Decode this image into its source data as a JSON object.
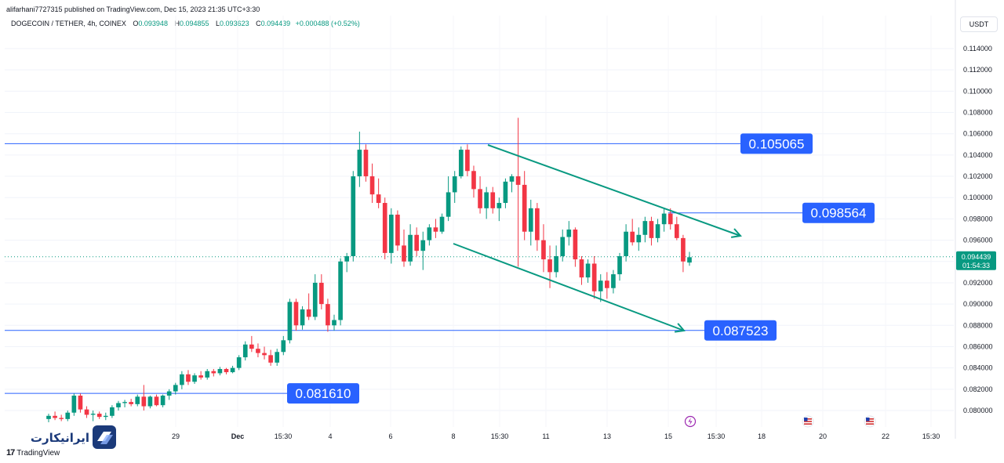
{
  "header": {
    "published": "alifarhani7727315 published on TradingView.com, Dec 15, 2023 21:35 UTC+3:30",
    "symbol": "DOGECOIN / TETHER, 4h, COINEX",
    "ohlc": {
      "o_label": "O",
      "o": "0.093948",
      "h_label": "H",
      "h": "0.094855",
      "l_label": "L",
      "l": "0.093623",
      "c_label": "C",
      "c": "0.094439",
      "change": "+0.000488 (+0.52%)"
    },
    "currency": "USDT"
  },
  "footer": {
    "brand": "TradingView",
    "watermark": "ایرانیکارت"
  },
  "colors": {
    "up": "#089981",
    "down": "#f23645",
    "level_line": "#2962ff",
    "label_bg": "#2962ff",
    "channel": "#089981",
    "price_tag": "#089981"
  },
  "chart_data": {
    "type": "candlestick",
    "symbol": "DOGECOIN / TETHER",
    "interval": "4h",
    "exchange": "COINEX",
    "y_ticks": [
      "0.114000",
      "0.112000",
      "0.110000",
      "0.108000",
      "0.106000",
      "0.104000",
      "0.102000",
      "0.100000",
      "0.098000",
      "0.096000",
      "0.094000",
      "0.092000",
      "0.090000",
      "0.088000",
      "0.086000",
      "0.084000",
      "0.082000",
      "0.080000"
    ],
    "ylim": [
      0.0788,
      0.1158
    ],
    "x_ticks": [
      "29",
      "Dec",
      "15:30",
      "4",
      "6",
      "8",
      "15:30",
      "11",
      "13",
      "15",
      "15:30",
      "18",
      "20",
      "22",
      "15:30"
    ],
    "current_price": "0.094439",
    "countdown": "01:54:33",
    "levels": [
      {
        "label": "0.105065",
        "value": 0.105065
      },
      {
        "label": "0.098564",
        "value": 0.098564
      },
      {
        "label": "0.087523",
        "value": 0.087523
      },
      {
        "label": "0.081610",
        "value": 0.08161
      }
    ],
    "candles": [
      [
        0.0792,
        0.0797,
        0.0789,
        0.0795
      ],
      [
        0.0795,
        0.0799,
        0.0791,
        0.0793
      ],
      [
        0.0793,
        0.0796,
        0.079,
        0.0792
      ],
      [
        0.0792,
        0.08,
        0.079,
        0.0798
      ],
      [
        0.0798,
        0.0816,
        0.0795,
        0.0814
      ],
      [
        0.0814,
        0.0816,
        0.0798,
        0.0801
      ],
      [
        0.0801,
        0.0804,
        0.0793,
        0.0796
      ],
      [
        0.0796,
        0.08,
        0.079,
        0.0797
      ],
      [
        0.0797,
        0.0799,
        0.0792,
        0.0794
      ],
      [
        0.0794,
        0.0798,
        0.0791,
        0.0795
      ],
      [
        0.0795,
        0.0805,
        0.0793,
        0.0803
      ],
      [
        0.0803,
        0.0809,
        0.08,
        0.0807
      ],
      [
        0.0807,
        0.081,
        0.0803,
        0.0808
      ],
      [
        0.0808,
        0.0811,
        0.0804,
        0.0806
      ],
      [
        0.0806,
        0.0815,
        0.0804,
        0.0813
      ],
      [
        0.0813,
        0.0824,
        0.08,
        0.0804
      ],
      [
        0.0804,
        0.0814,
        0.0802,
        0.0813
      ],
      [
        0.0813,
        0.0815,
        0.0804,
        0.0805
      ],
      [
        0.0805,
        0.0815,
        0.0803,
        0.0814
      ],
      [
        0.0814,
        0.082,
        0.081,
        0.0818
      ],
      [
        0.0818,
        0.0826,
        0.0815,
        0.0824
      ],
      [
        0.0824,
        0.0837,
        0.082,
        0.0834
      ],
      [
        0.0834,
        0.0838,
        0.0824,
        0.0827
      ],
      [
        0.0827,
        0.0835,
        0.0825,
        0.0833
      ],
      [
        0.0833,
        0.0837,
        0.0829,
        0.0831
      ],
      [
        0.0831,
        0.0839,
        0.0829,
        0.0837
      ],
      [
        0.0837,
        0.0839,
        0.0832,
        0.0835
      ],
      [
        0.0835,
        0.0841,
        0.0833,
        0.0839
      ],
      [
        0.0839,
        0.084,
        0.0834,
        0.0836
      ],
      [
        0.0836,
        0.0842,
        0.0835,
        0.084
      ],
      [
        0.084,
        0.0852,
        0.0838,
        0.085
      ],
      [
        0.085,
        0.0865,
        0.0847,
        0.0862
      ],
      [
        0.0862,
        0.087,
        0.0855,
        0.0858
      ],
      [
        0.0858,
        0.0863,
        0.085,
        0.0854
      ],
      [
        0.0854,
        0.086,
        0.0848,
        0.0852
      ],
      [
        0.0852,
        0.0857,
        0.0842,
        0.0845
      ],
      [
        0.0845,
        0.0858,
        0.0842,
        0.0855
      ],
      [
        0.0855,
        0.087,
        0.0852,
        0.0866
      ],
      [
        0.0866,
        0.0905,
        0.0863,
        0.0902
      ],
      [
        0.0902,
        0.0905,
        0.0875,
        0.088
      ],
      [
        0.088,
        0.0898,
        0.0876,
        0.0895
      ],
      [
        0.0895,
        0.091,
        0.0885,
        0.0888
      ],
      [
        0.0888,
        0.0928,
        0.0885,
        0.092
      ],
      [
        0.092,
        0.0928,
        0.0895,
        0.09
      ],
      [
        0.09,
        0.0905,
        0.0874,
        0.088
      ],
      [
        0.088,
        0.089,
        0.0875,
        0.0885
      ],
      [
        0.0885,
        0.0943,
        0.088,
        0.094
      ],
      [
        0.094,
        0.0948,
        0.093,
        0.0945
      ],
      [
        0.0945,
        0.1025,
        0.094,
        0.102
      ],
      [
        0.102,
        0.1062,
        0.101,
        0.1045
      ],
      [
        0.1045,
        0.105,
        0.1015,
        0.102
      ],
      [
        0.102,
        0.1032,
        0.0995,
        0.1003
      ],
      [
        0.1003,
        0.1018,
        0.099,
        0.0995
      ],
      [
        0.0995,
        0.1,
        0.0942,
        0.0948
      ],
      [
        0.0948,
        0.099,
        0.0938,
        0.0984
      ],
      [
        0.0984,
        0.0988,
        0.095,
        0.0955
      ],
      [
        0.0955,
        0.097,
        0.0935,
        0.094
      ],
      [
        0.094,
        0.0975,
        0.0936,
        0.0965
      ],
      [
        0.0965,
        0.0972,
        0.0945,
        0.095
      ],
      [
        0.095,
        0.0968,
        0.0932,
        0.096
      ],
      [
        0.096,
        0.0975,
        0.0955,
        0.0972
      ],
      [
        0.0972,
        0.098,
        0.0962,
        0.0968
      ],
      [
        0.0968,
        0.0985,
        0.0966,
        0.0982
      ],
      [
        0.0982,
        0.102,
        0.0978,
        0.1005
      ],
      [
        0.1005,
        0.1025,
        0.0995,
        0.102
      ],
      [
        0.102,
        0.1048,
        0.1018,
        0.1045
      ],
      [
        0.1045,
        0.105,
        0.102,
        0.1025
      ],
      [
        0.1025,
        0.103,
        0.1,
        0.1008
      ],
      [
        0.1008,
        0.102,
        0.0985,
        0.099
      ],
      [
        0.099,
        0.101,
        0.098,
        0.1005
      ],
      [
        0.1005,
        0.101,
        0.0985,
        0.099
      ],
      [
        0.099,
        0.1,
        0.0978,
        0.0995
      ],
      [
        0.0995,
        0.1018,
        0.099,
        0.1015
      ],
      [
        0.1015,
        0.1022,
        0.1005,
        0.102
      ],
      [
        0.102,
        0.1075,
        0.0935,
        0.1012
      ],
      [
        0.1012,
        0.1025,
        0.096,
        0.0968
      ],
      [
        0.0968,
        0.0998,
        0.0955,
        0.099
      ],
      [
        0.099,
        0.0995,
        0.095,
        0.096
      ],
      [
        0.096,
        0.0975,
        0.093,
        0.0942
      ],
      [
        0.0942,
        0.0955,
        0.0915,
        0.093
      ],
      [
        0.093,
        0.0955,
        0.0925,
        0.0945
      ],
      [
        0.0945,
        0.097,
        0.094,
        0.0963
      ],
      [
        0.0963,
        0.0978,
        0.0955,
        0.097
      ],
      [
        0.097,
        0.0972,
        0.0935,
        0.0942
      ],
      [
        0.0942,
        0.0945,
        0.0918,
        0.0925
      ],
      [
        0.0925,
        0.0942,
        0.092,
        0.0938
      ],
      [
        0.0938,
        0.0945,
        0.0905,
        0.0912
      ],
      [
        0.0912,
        0.0928,
        0.0902,
        0.0922
      ],
      [
        0.0922,
        0.093,
        0.0905,
        0.0915
      ],
      [
        0.0915,
        0.0932,
        0.091,
        0.0928
      ],
      [
        0.0928,
        0.0948,
        0.0922,
        0.0945
      ],
      [
        0.0945,
        0.0975,
        0.094,
        0.0968
      ],
      [
        0.0968,
        0.098,
        0.0955,
        0.0958
      ],
      [
        0.0958,
        0.0972,
        0.095,
        0.0965
      ],
      [
        0.0965,
        0.0982,
        0.0958,
        0.0978
      ],
      [
        0.0978,
        0.0982,
        0.0955,
        0.0962
      ],
      [
        0.0962,
        0.098,
        0.0958,
        0.0975
      ],
      [
        0.0975,
        0.099,
        0.0968,
        0.0985
      ],
      [
        0.0985,
        0.099,
        0.097,
        0.0975
      ],
      [
        0.0975,
        0.0982,
        0.096,
        0.0962
      ],
      [
        0.0962,
        0.0965,
        0.093,
        0.094
      ],
      [
        0.0939,
        0.0949,
        0.0936,
        0.0944
      ]
    ]
  }
}
